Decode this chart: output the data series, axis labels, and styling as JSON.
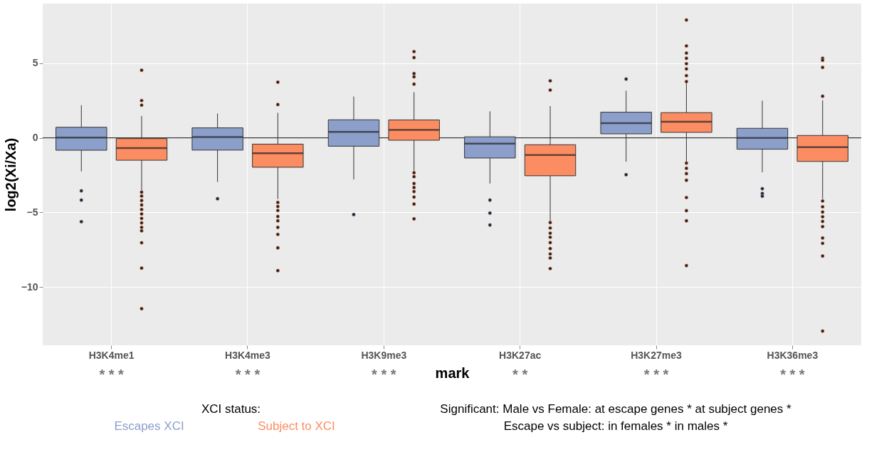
{
  "chart_data": {
    "type": "box",
    "xlabel": "mark",
    "ylabel": "log2(Xi/Xa)",
    "legend_title": "XCI status:",
    "categories": [
      "H3K4me1",
      "H3K4me3",
      "H3K9me3",
      "H3K27ac",
      "H3K27me3",
      "H3K36me3"
    ],
    "ylim": [
      -13.9,
      9.0
    ],
    "yticks": [
      -10,
      -5,
      0,
      5
    ],
    "grid": true,
    "legend": "bottom",
    "ref_lines": [
      {
        "axis": "y",
        "value": 0,
        "label": null,
        "color": "#333333"
      }
    ],
    "series": [
      {
        "name": "Escapes XCI",
        "color": "#8c9fcb",
        "boxes": [
          {
            "low": -2.25,
            "q1": -0.83,
            "median": 0.02,
            "q3": 0.71,
            "high": 2.19,
            "outliers": [
              -3.55,
              -4.17,
              -5.62
            ]
          },
          {
            "low": -2.95,
            "q1": -0.82,
            "median": 0.05,
            "q3": 0.67,
            "high": 1.63,
            "outliers": [
              -4.08
            ]
          },
          {
            "low": -2.79,
            "q1": -0.56,
            "median": 0.4,
            "q3": 1.21,
            "high": 2.77,
            "outliers": [
              -5.14
            ]
          },
          {
            "low": -3.06,
            "q1": -1.35,
            "median": -0.39,
            "q3": 0.07,
            "high": 1.78,
            "outliers": [
              -4.17,
              -5.04,
              -5.84
            ]
          },
          {
            "low": -1.6,
            "q1": 0.27,
            "median": 0.98,
            "q3": 1.72,
            "high": 3.16,
            "outliers": [
              3.94,
              -2.47
            ]
          },
          {
            "low": -2.31,
            "q1": -0.76,
            "median": 0.0,
            "q3": 0.64,
            "high": 2.49,
            "outliers": [
              -3.41,
              -3.73,
              -3.91
            ]
          }
        ]
      },
      {
        "name": "Subject to XCI",
        "color": "#fc8d62",
        "boxes": [
          {
            "low": -3.5,
            "q1": -1.5,
            "median": -0.69,
            "q3": -0.05,
            "high": 1.47,
            "outliers": [
              4.53,
              2.5,
              2.19,
              -3.64,
              -3.9,
              -4.2,
              -4.5,
              -4.8,
              -5.1,
              -5.4,
              -5.7,
              -6.0,
              -6.23,
              -7.03,
              -8.73,
              -11.45
            ]
          },
          {
            "low": -4.1,
            "q1": -1.97,
            "median": -1.03,
            "q3": -0.42,
            "high": 1.68,
            "outliers": [
              3.73,
              2.23,
              -4.33,
              -4.6,
              -4.87,
              -5.27,
              -5.56,
              -6.0,
              -6.47,
              -7.37,
              -8.9
            ]
          },
          {
            "low": -2.2,
            "q1": -0.16,
            "median": 0.53,
            "q3": 1.2,
            "high": 3.06,
            "outliers": [
              5.78,
              5.38,
              4.31,
              4.09,
              3.6,
              -2.34,
              -2.6,
              -3.06,
              -3.33,
              -3.6,
              -3.97,
              -4.44,
              -5.43
            ]
          },
          {
            "low": -5.6,
            "q1": -2.54,
            "median": -1.15,
            "q3": -0.46,
            "high": 2.13,
            "outliers": [
              3.82,
              3.2,
              -5.68,
              -6.04,
              -6.39,
              -6.66,
              -7.02,
              -7.42,
              -7.78,
              -8.05,
              -8.76
            ]
          },
          {
            "low": -1.6,
            "q1": 0.37,
            "median": 1.08,
            "q3": 1.69,
            "high": 3.73,
            "outliers": [
              7.9,
              6.16,
              5.68,
              5.33,
              4.97,
              4.62,
              4.17,
              3.77,
              -1.69,
              -2.04,
              -2.4,
              -2.84,
              -4.0,
              -4.88,
              -5.56,
              -8.56
            ]
          },
          {
            "low": -4.09,
            "q1": -1.58,
            "median": -0.62,
            "q3": 0.16,
            "high": 2.52,
            "outliers": [
              5.33,
              5.2,
              4.72,
              2.79,
              -4.23,
              -4.62,
              -4.97,
              -5.29,
              -5.6,
              -5.95,
              -6.71,
              -7.07,
              -7.92,
              -12.95
            ]
          }
        ]
      }
    ],
    "annotations": [
      "* *  *",
      "* * *",
      "* * *",
      "* *",
      "* * *",
      "* * *",
      "Significant: Male vs Female: at escape genes *   at subject genes *",
      "Escape vs subject: in females *  in males *"
    ]
  }
}
